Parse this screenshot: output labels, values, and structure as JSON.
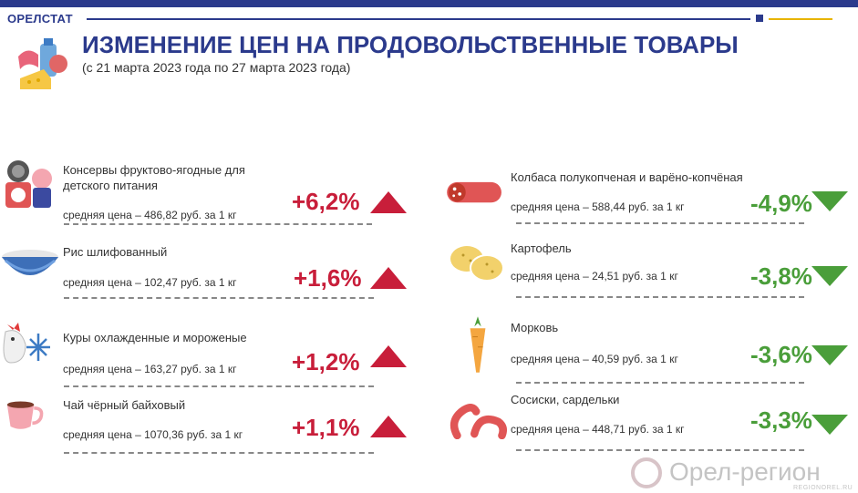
{
  "header": {
    "agency": "ОРЕЛСТАТ",
    "title": "ИЗМЕНЕНИЕ ЦЕН НА ПРОДОВОЛЬСТВЕННЫЕ ТОВАРЫ",
    "subtitle": "(с 21 марта 2023 года по 27 марта 2023 года)",
    "icon": "groceries-icon",
    "colors": {
      "brand": "#2b3a8c",
      "accent": "#e8b400",
      "up": "#c81e3a",
      "down": "#4a9e3a"
    }
  },
  "increases": [
    {
      "name": "Консервы фруктово-ягодные для детского питания",
      "price": "средняя цена – 486,82 руб. за 1 кг",
      "change": "+6,2%",
      "icon": "baby-food-can-icon"
    },
    {
      "name": "Рис шлифованный",
      "price": "средняя цена – 102,47 руб. за 1 кг",
      "change": "+1,6%",
      "icon": "rice-bowl-icon"
    },
    {
      "name": "Куры охлажденные и мороженые",
      "price": "средняя цена – 163,27 руб. за 1 кг",
      "change": "+1,2%",
      "icon": "chicken-snowflake-icon"
    },
    {
      "name": "Чай чёрный байховый",
      "price": "средняя цена – 1070,36 руб. за 1 кг",
      "change": "+1,1%",
      "icon": "tea-cup-icon"
    }
  ],
  "decreases": [
    {
      "name": "Колбаса полукопченая и варёно-копчёная",
      "price": "средняя цена – 588,44 руб. за 1 кг",
      "change": "-4,9%",
      "icon": "sausage-icon"
    },
    {
      "name": "Картофель",
      "price": "средняя цена –  24,51 руб. за  1 кг",
      "change": "-3,8%",
      "icon": "potato-icon"
    },
    {
      "name": "Морковь",
      "price": "средняя цена – 40,59 руб. за 1 кг",
      "change": "-3,6%",
      "icon": "carrot-icon"
    },
    {
      "name": "Сосиски, сардельки",
      "price": "средняя цена – 448,71 руб. за 1 кг",
      "change": "-3,3%",
      "icon": "hot-dogs-icon"
    }
  ],
  "watermark": {
    "text": "Орел-регион",
    "sub": "REGIONOREL.RU"
  }
}
